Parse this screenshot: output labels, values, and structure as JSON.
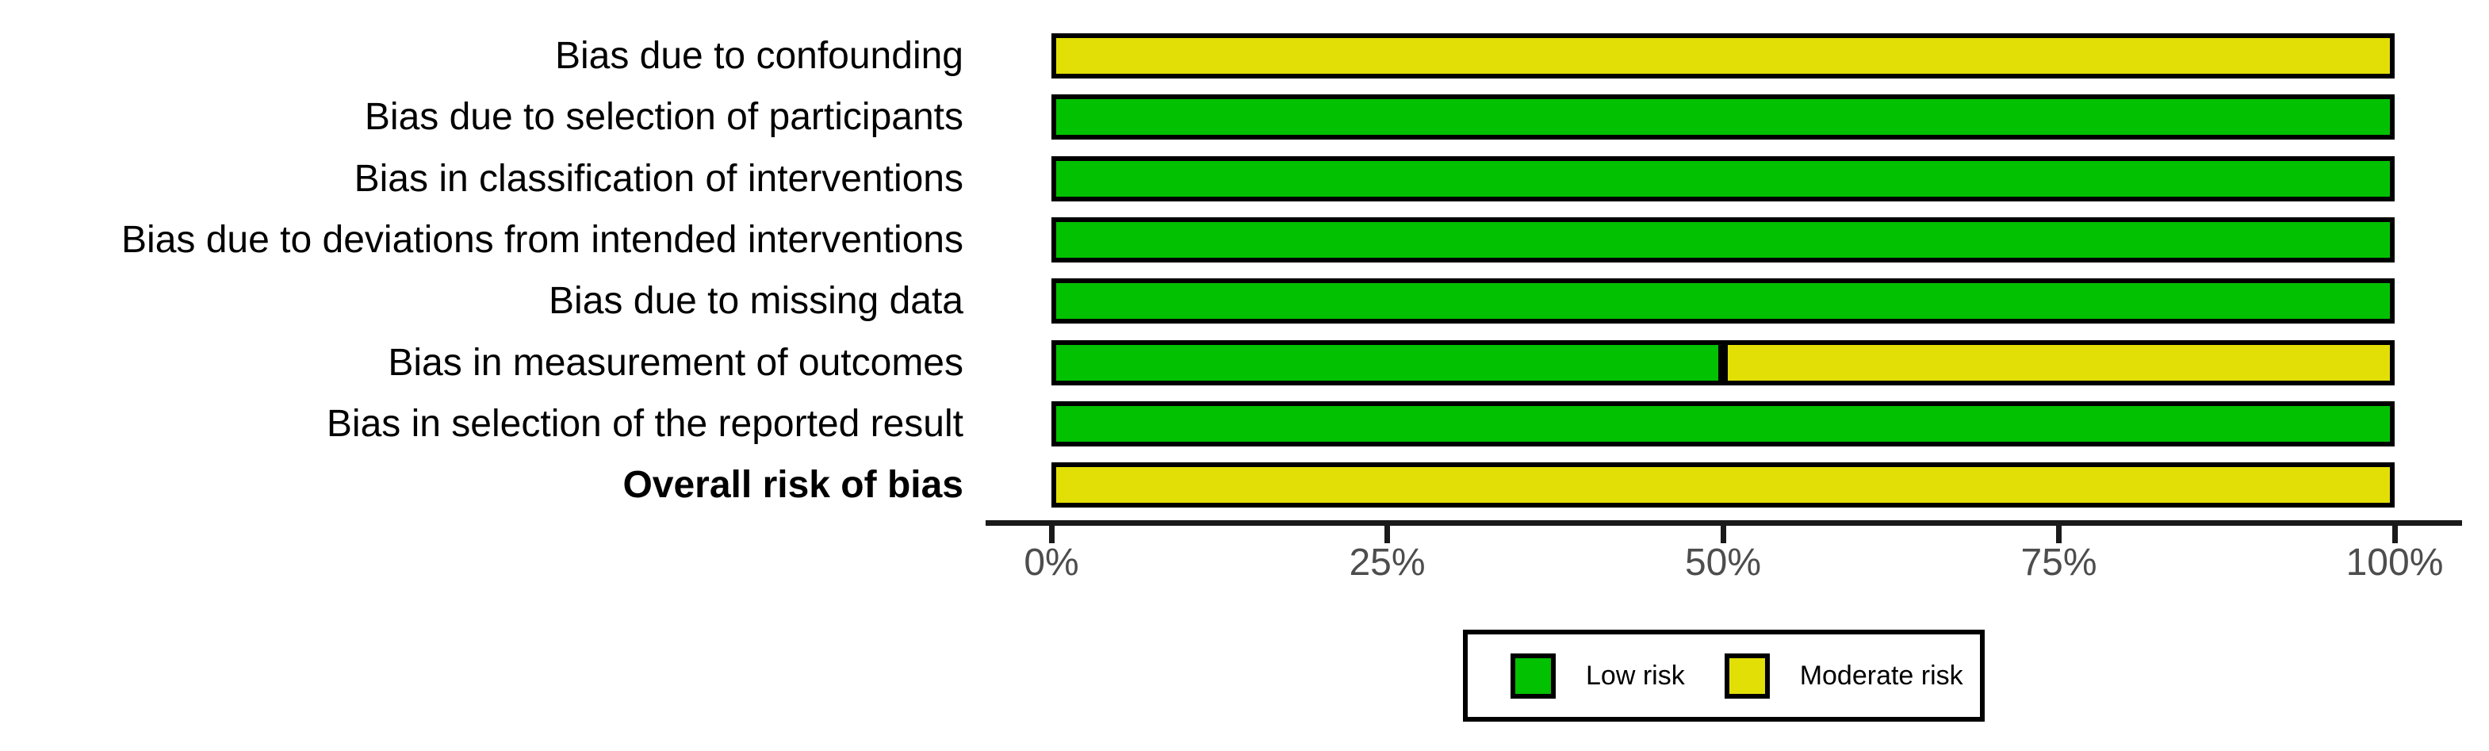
{
  "chart_data": {
    "type": "bar",
    "orientation": "horizontal",
    "stacked": true,
    "title": "",
    "xlabel": "",
    "ylabel": "",
    "xlim": [
      0,
      100
    ],
    "grid": false,
    "legend_position": "bottom-center-boxed",
    "categories": [
      "Bias due to confounding",
      "Bias due to selection of participants",
      "Bias in classification of interventions",
      "Bias due to deviations from intended interventions",
      "Bias due to missing data",
      "Bias in measurement of outcomes",
      "Bias in selection of the reported result",
      "Overall risk of bias"
    ],
    "bold_categories": [
      "Overall risk of bias"
    ],
    "series": [
      {
        "name": "Low risk",
        "color": "#02C100",
        "values": [
          0,
          100,
          100,
          100,
          100,
          50,
          100,
          0
        ]
      },
      {
        "name": "Moderate risk",
        "color": "#E2DF07",
        "values": [
          100,
          0,
          0,
          0,
          0,
          50,
          0,
          100
        ]
      }
    ],
    "x_tick_labels": [
      "0%",
      "25%",
      "50%",
      "75%",
      "100%"
    ],
    "x_tick_positions": [
      0,
      25,
      50,
      75,
      100
    ]
  },
  "style_colors": {
    "bar_outline": "#000000",
    "axis_line": "#1A1A1A",
    "x_tick_label": "#4D4D4D",
    "category_label": "#000000",
    "background": "#FFFFFF"
  }
}
